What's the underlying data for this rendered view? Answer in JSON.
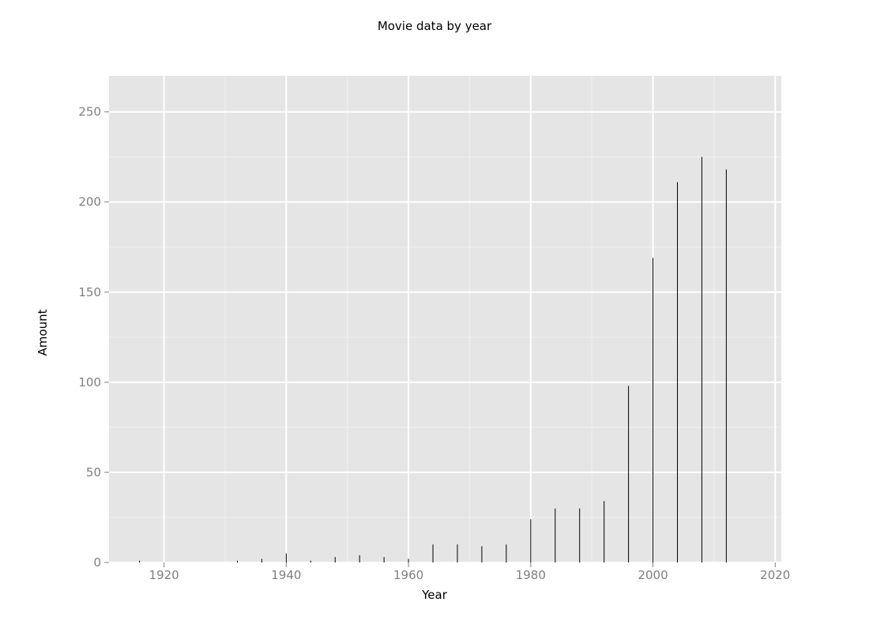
{
  "chart_data": {
    "type": "bar",
    "title": "Movie data by year",
    "xlabel": "Year",
    "ylabel": "Amount",
    "xlim": [
      1911,
      2021
    ],
    "ylim": [
      0,
      270
    ],
    "xticks": [
      1920,
      1940,
      1960,
      1980,
      2000,
      2020
    ],
    "yticks": [
      0,
      50,
      100,
      150,
      200,
      250
    ],
    "grid": true,
    "panel_color": "#e5e5e5",
    "grid_color": "#ffffff",
    "bar_color": "#000000",
    "x": [
      1916,
      1932,
      1936,
      1940,
      1944,
      1948,
      1952,
      1956,
      1960,
      1964,
      1968,
      1972,
      1976,
      1980,
      1984,
      1988,
      1992,
      1996,
      2000,
      2004,
      2008,
      2012
    ],
    "values": [
      1,
      1,
      2,
      5,
      1,
      3,
      4,
      3,
      2,
      10,
      10,
      9,
      10,
      24,
      30,
      30,
      34,
      98,
      169,
      211,
      225,
      218
    ]
  }
}
